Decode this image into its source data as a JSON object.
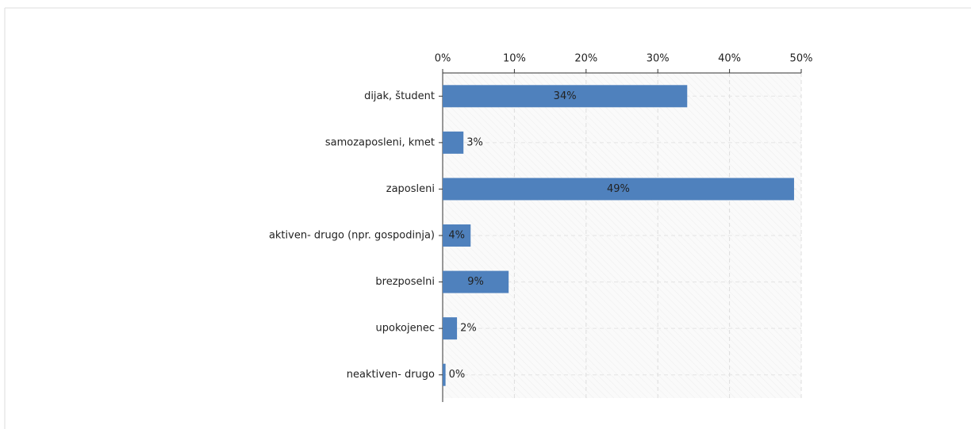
{
  "chart_data": {
    "type": "bar",
    "orientation": "horizontal",
    "categories": [
      "dijak, študent",
      "samozaposleni, kmet",
      "zaposleni",
      "aktiven- drugo (npr. gospodinja)",
      "brezposelni",
      "upokojenec",
      "neaktiven- drugo"
    ],
    "values": [
      34.1,
      2.9,
      49,
      3.9,
      9.2,
      2,
      0.4
    ],
    "value_labels": [
      "34%",
      "3%",
      "49%",
      "4%",
      "9%",
      "2%",
      "0%"
    ],
    "color": "#4f81bd",
    "xlim": [
      0,
      50
    ],
    "xticks": [
      {
        "value": 0,
        "label": "0%"
      },
      {
        "value": 10,
        "label": "10%"
      },
      {
        "value": 20,
        "label": "20%"
      },
      {
        "value": 30,
        "label": "30%"
      },
      {
        "value": 40,
        "label": "40%"
      },
      {
        "value": 50,
        "label": "50%"
      }
    ],
    "grid": true
  }
}
